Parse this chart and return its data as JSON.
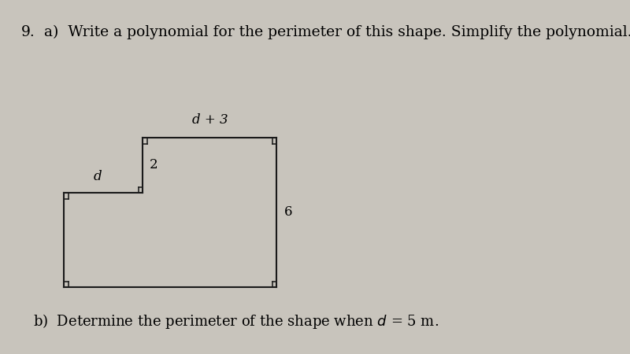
{
  "bg_color": "#c8c4bc",
  "shape_color": "#1a1a1a",
  "shape_lw": 1.5,
  "label_d_plus_3": "d + 3",
  "label_2": "2",
  "label_d": "d",
  "label_6": "6",
  "font_size_main": 13.5,
  "font_size_labels": 12,
  "font_size_partb": 13,
  "q_number": "9.",
  "part_a": "a)  Write a polynomial for the perimeter of this shape. Simplify the polynomial.",
  "part_b_full": "b)  Determine the perimeter of the shape when $d$ = 5 m."
}
